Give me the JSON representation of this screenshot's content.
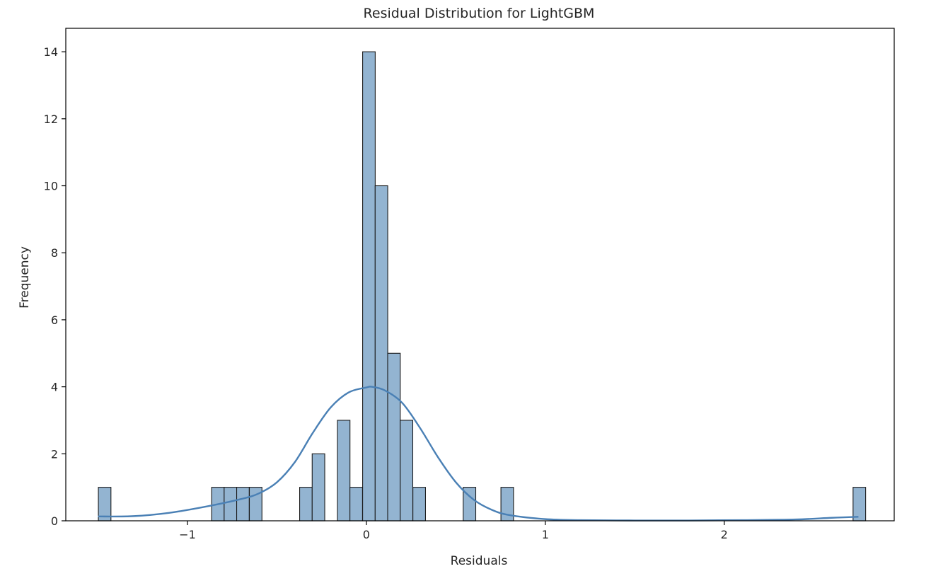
{
  "chart_data": {
    "type": "bar",
    "title": "Residual Distribution for LightGBM",
    "xlabel": "Residuals",
    "ylabel": "Frequency",
    "xlim": [
      -1.68,
      2.95
    ],
    "ylim": [
      0,
      14.7
    ],
    "xticks": [
      -1,
      0,
      1,
      2
    ],
    "xtick_labels": [
      "−1",
      "0",
      "1",
      "2"
    ],
    "yticks": [
      0,
      2,
      4,
      6,
      8,
      10,
      12,
      14
    ],
    "ytick_labels": [
      "0",
      "2",
      "4",
      "6",
      "8",
      "10",
      "12",
      "14"
    ],
    "grid": false,
    "legend": "none",
    "bin_width": 0.0703,
    "bins": [
      {
        "start": -1.498,
        "count": 1
      },
      {
        "start": -0.865,
        "count": 1
      },
      {
        "start": -0.795,
        "count": 1
      },
      {
        "start": -0.725,
        "count": 1
      },
      {
        "start": -0.654,
        "count": 1
      },
      {
        "start": -0.373,
        "count": 1
      },
      {
        "start": -0.303,
        "count": 2
      },
      {
        "start": -0.162,
        "count": 3
      },
      {
        "start": -0.092,
        "count": 1
      },
      {
        "start": -0.021,
        "count": 14
      },
      {
        "start": 0.049,
        "count": 10
      },
      {
        "start": 0.119,
        "count": 5
      },
      {
        "start": 0.189,
        "count": 3
      },
      {
        "start": 0.26,
        "count": 1
      },
      {
        "start": 0.541,
        "count": 1
      },
      {
        "start": 0.752,
        "count": 1
      },
      {
        "start": 2.72,
        "count": 1
      }
    ],
    "kde": {
      "x": [
        -1.5,
        -1.3,
        -1.1,
        -0.9,
        -0.7,
        -0.6,
        -0.5,
        -0.4,
        -0.3,
        -0.2,
        -0.1,
        0.0,
        0.03,
        0.1,
        0.2,
        0.3,
        0.4,
        0.5,
        0.6,
        0.7,
        0.8,
        1.0,
        1.2,
        1.5,
        1.8,
        2.1,
        2.4,
        2.6,
        2.75
      ],
      "y": [
        0.13,
        0.14,
        0.24,
        0.42,
        0.65,
        0.82,
        1.15,
        1.75,
        2.62,
        3.38,
        3.83,
        3.98,
        4.0,
        3.9,
        3.52,
        2.77,
        1.9,
        1.15,
        0.63,
        0.33,
        0.17,
        0.05,
        0.02,
        0.01,
        0.01,
        0.02,
        0.04,
        0.09,
        0.12
      ]
    },
    "colors": {
      "bar_fill": "#93b4d1",
      "bar_edge": "#1a1a1a",
      "kde_line": "#4a80b5",
      "axis": "#000000",
      "text": "#262626"
    }
  }
}
